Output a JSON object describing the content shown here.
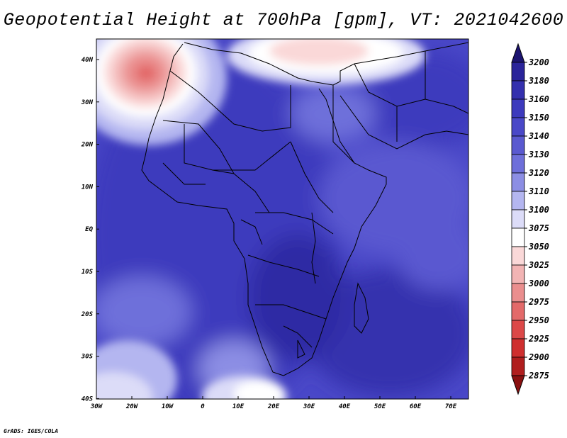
{
  "title": "Geopotential Height at 700hPa [gpm], VT: 2021042600",
  "credit": "GrADS: IGES/COLA",
  "map": {
    "lon_ticks": [
      "30W",
      "20W",
      "10W",
      "0",
      "10E",
      "20E",
      "30E",
      "40E",
      "50E",
      "60E",
      "70E"
    ],
    "lat_ticks": [
      "40N",
      "30N",
      "20N",
      "10N",
      "EQ",
      "10S",
      "20S",
      "30S",
      "40S"
    ]
  },
  "colorbar": {
    "levels": [
      "3200",
      "3180",
      "3160",
      "3150",
      "3140",
      "3130",
      "3120",
      "3110",
      "3100",
      "3075",
      "3050",
      "3025",
      "3000",
      "2975",
      "2950",
      "2925",
      "2900",
      "2875"
    ],
    "colors": [
      "#1c1470",
      "#2a249a",
      "#3430ae",
      "#3d3abd",
      "#4a48c8",
      "#5a59d0",
      "#6e6fda",
      "#8c8ee4",
      "#b4b6f0",
      "#dcdcf8",
      "#ffffff",
      "#fad8d8",
      "#f2b4b4",
      "#ea8e8e",
      "#e36a6a",
      "#dc4848",
      "#cf2f2f",
      "#b01e1e",
      "#8a1010"
    ]
  }
}
